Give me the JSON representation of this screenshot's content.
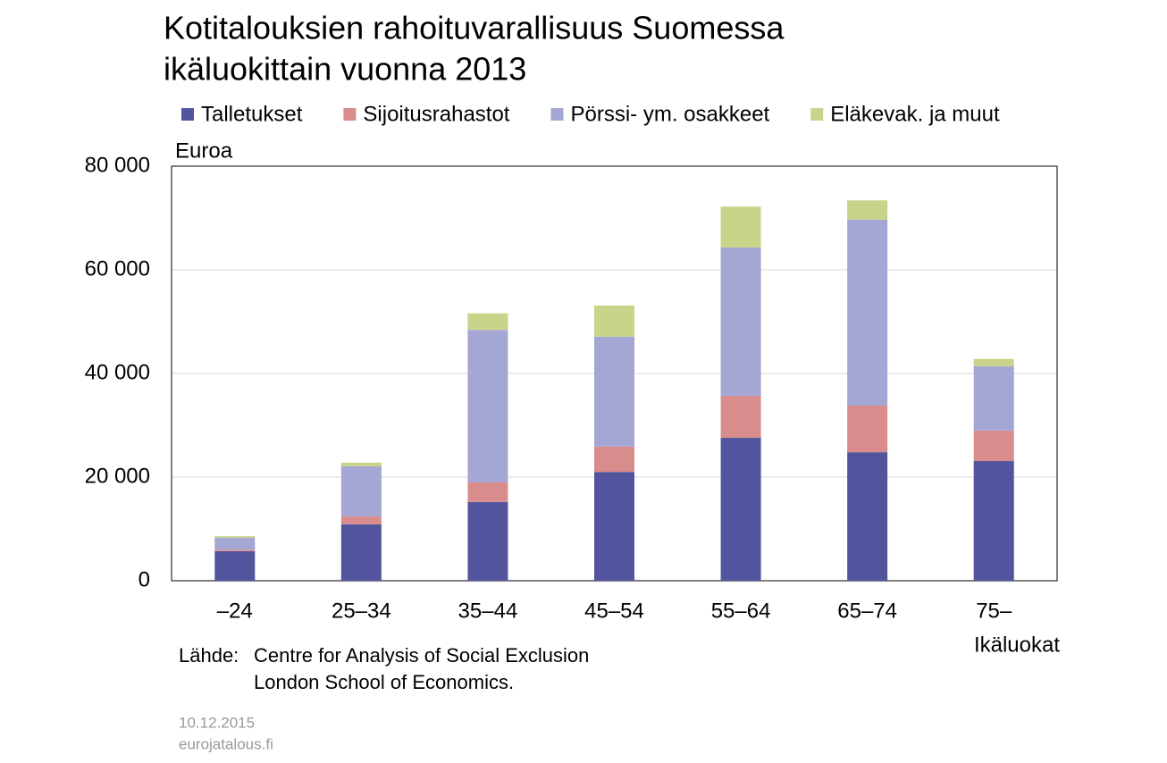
{
  "chart_data": {
    "type": "stacked_bar",
    "title": [
      "Kotitalouksien rahoituvarallisuus Suomessa",
      "ikäluokittain vuonna 2013"
    ],
    "y_label": "Euroa",
    "x_label": "Ikäluokat",
    "categories": [
      "–24",
      "25–34",
      "35–44",
      "45–54",
      "55–64",
      "65–74",
      "75–"
    ],
    "series": [
      {
        "name": "Talletukset",
        "color": "#52559e",
        "values": [
          5700,
          10900,
          15200,
          21000,
          27600,
          24800,
          23100
        ]
      },
      {
        "name": "Sijoitusrahastot",
        "color": "#d98c8c",
        "values": [
          300,
          1500,
          3800,
          4900,
          8100,
          9000,
          5900
        ]
      },
      {
        "name": "Pörssi- ym. osakkeet",
        "color": "#a4a6d3",
        "values": [
          2300,
          9700,
          29400,
          21200,
          28600,
          35900,
          12400
        ]
      },
      {
        "name": "Eläkevak. ja muut",
        "color": "#c8d48a",
        "values": [
          300,
          700,
          3200,
          6000,
          7900,
          3700,
          1400
        ]
      }
    ],
    "ylim": [
      0,
      80000
    ],
    "yticks": [
      0,
      {
        "value": 20000,
        "label": "20 000"
      },
      {
        "value": 40000,
        "label": "40 000"
      },
      {
        "value": 60000,
        "label": "60 000"
      },
      {
        "value": 80000,
        "label": "80 000"
      }
    ],
    "grid": true,
    "source_label": "Lähde:",
    "source": [
      "Centre for Analysis of Social Exclusion",
      "London School of Economics."
    ],
    "date": "10.12.2015",
    "site": "eurojatalous.fi"
  }
}
